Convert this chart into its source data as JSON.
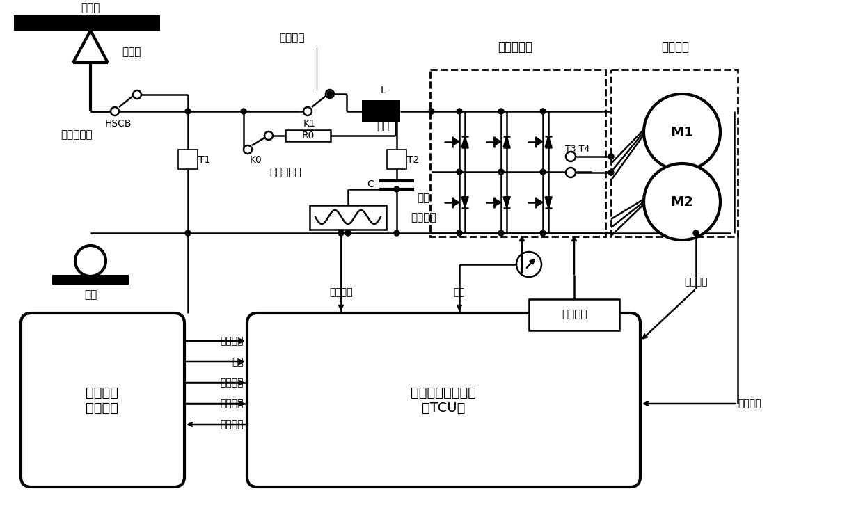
{
  "bg": "#ffffff",
  "lw": 1.8,
  "lw_thick": 3.0,
  "labels": {
    "catenary": "接触网",
    "pantograph": "受电弓",
    "hscb": "HSCB",
    "hscb_name": "高速断路器",
    "main_contact": "主接触器",
    "K1": "K1",
    "K0": "K0",
    "R0": "R0",
    "precharge": "预充电回路",
    "L_lbl": "L",
    "inductor": "电感",
    "C_lbl": "C",
    "capacitor": "电容",
    "T1": "T1",
    "T2": "T2",
    "T3T4": "T3 T4",
    "inverter": "牵引变流器",
    "motor_box": "牵引电机",
    "M1": "M1",
    "M2": "M2",
    "brake": "制动电阻",
    "rail": "铁轨",
    "overtemp": "过温信号",
    "temp": "温度",
    "motor_current": "电机电流",
    "motor_speed": "电机转速",
    "cap_voltage": "电容电压",
    "net_voltage": "网压",
    "torque_cmd": "转矩指令",
    "ctrl_cmd": "控制指令",
    "run_state": "运行状态",
    "drive_pulse": "驱动脉冲",
    "vcs": "车辆逻辑\n控制系统",
    "tcu": "牵引传动控制系统\n（TCU）"
  }
}
